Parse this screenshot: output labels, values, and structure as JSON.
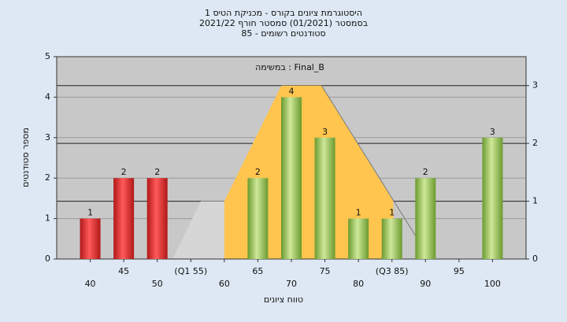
{
  "chart_data": {
    "type": "bar",
    "title": "היסטוגרמת ציונים בקורס - מכניקת הטיס 1",
    "subtitle": "בסמסטר  (01/2021)  סמסטר חורף 2021/22",
    "subtitle2": "סטודנטים רשומים - 85",
    "annotation": "במשימה : Final_B",
    "x_label": "טווח ציונים",
    "y_label": "מספר סטודנטים",
    "x": [
      40,
      45,
      50,
      55,
      60,
      65,
      70,
      75,
      80,
      85,
      90,
      95,
      100
    ],
    "values": [
      1,
      2,
      2,
      0,
      0,
      2,
      4,
      3,
      1,
      1,
      2,
      0,
      3
    ],
    "colors": [
      "#e03434",
      "#e03434",
      "#e03434",
      "#8cc04a",
      "#8cc04a",
      "#8cc04a",
      "#8cc04a",
      "#8cc04a",
      "#8cc04a",
      "#8cc04a",
      "#8cc04a",
      "#8cc04a",
      "#8cc04a"
    ],
    "xlim": [
      35,
      105
    ],
    "xticks": [
      40,
      45,
      50,
      {
        "value": 55,
        "label": "(Q1 55)"
      },
      60,
      65,
      70,
      75,
      80,
      {
        "value": 85,
        "label": "(Q3 85)"
      },
      90,
      95,
      100
    ],
    "ylim": [
      0,
      5
    ],
    "yticks": [
      0,
      1,
      2,
      3,
      4,
      5
    ],
    "y2lim": [
      0,
      3.5
    ],
    "y2ticks": [
      0,
      1,
      2,
      3
    ],
    "areas": [
      {
        "color": "#d6d6d6",
        "axis": "y2",
        "x": [
          52.3,
          56.5,
          60,
          60
        ],
        "values": [
          0,
          1,
          1,
          0
        ]
      },
      {
        "color": "#ffc54f",
        "axis": "y2",
        "x": [
          60,
          60,
          68.5,
          74.5,
          85.2,
          85.2
        ],
        "values": [
          0,
          1,
          3,
          3,
          1,
          0
        ]
      }
    ],
    "line": {
      "color": "#7a7a7a",
      "axis": "y2",
      "x": [
        74.5,
        88.8
      ],
      "values": [
        3,
        0.35
      ]
    },
    "grid": true
  }
}
